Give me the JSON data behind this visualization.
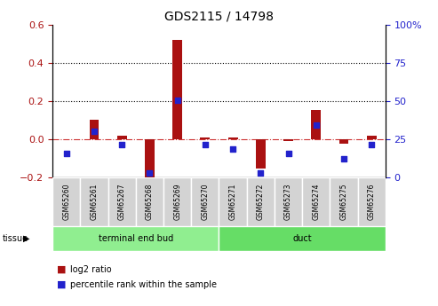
{
  "title": "GDS2115 / 14798",
  "samples": [
    "GSM65260",
    "GSM65261",
    "GSM65267",
    "GSM65268",
    "GSM65269",
    "GSM65270",
    "GSM65271",
    "GSM65272",
    "GSM65273",
    "GSM65274",
    "GSM65275",
    "GSM65276"
  ],
  "log2_ratio": [
    0.0,
    0.1,
    0.02,
    -0.24,
    0.52,
    0.01,
    0.01,
    -0.155,
    -0.01,
    0.155,
    -0.025,
    0.02
  ],
  "percentile_rank": [
    15.5,
    30.0,
    21.5,
    3.0,
    50.5,
    21.5,
    18.5,
    3.0,
    15.5,
    34.5,
    12.0,
    21.5
  ],
  "groups": [
    {
      "label": "terminal end bud",
      "start": 0,
      "end": 6,
      "color": "#90ee90"
    },
    {
      "label": "duct",
      "start": 6,
      "end": 12,
      "color": "#66dd66"
    }
  ],
  "ylim_left": [
    -0.2,
    0.6
  ],
  "ylim_right": [
    0,
    100
  ],
  "yticks_left": [
    -0.2,
    0.0,
    0.2,
    0.4,
    0.6
  ],
  "yticks_right": [
    0,
    25,
    50,
    75,
    100
  ],
  "bar_color": "#aa1111",
  "dot_color": "#2222cc",
  "zero_line_color": "#cc3333",
  "grid_line_color": "#000000",
  "bg_color": "#ffffff",
  "tissue_label": "tissue",
  "legend_log2": "log2 ratio",
  "legend_pct": "percentile rank within the sample"
}
